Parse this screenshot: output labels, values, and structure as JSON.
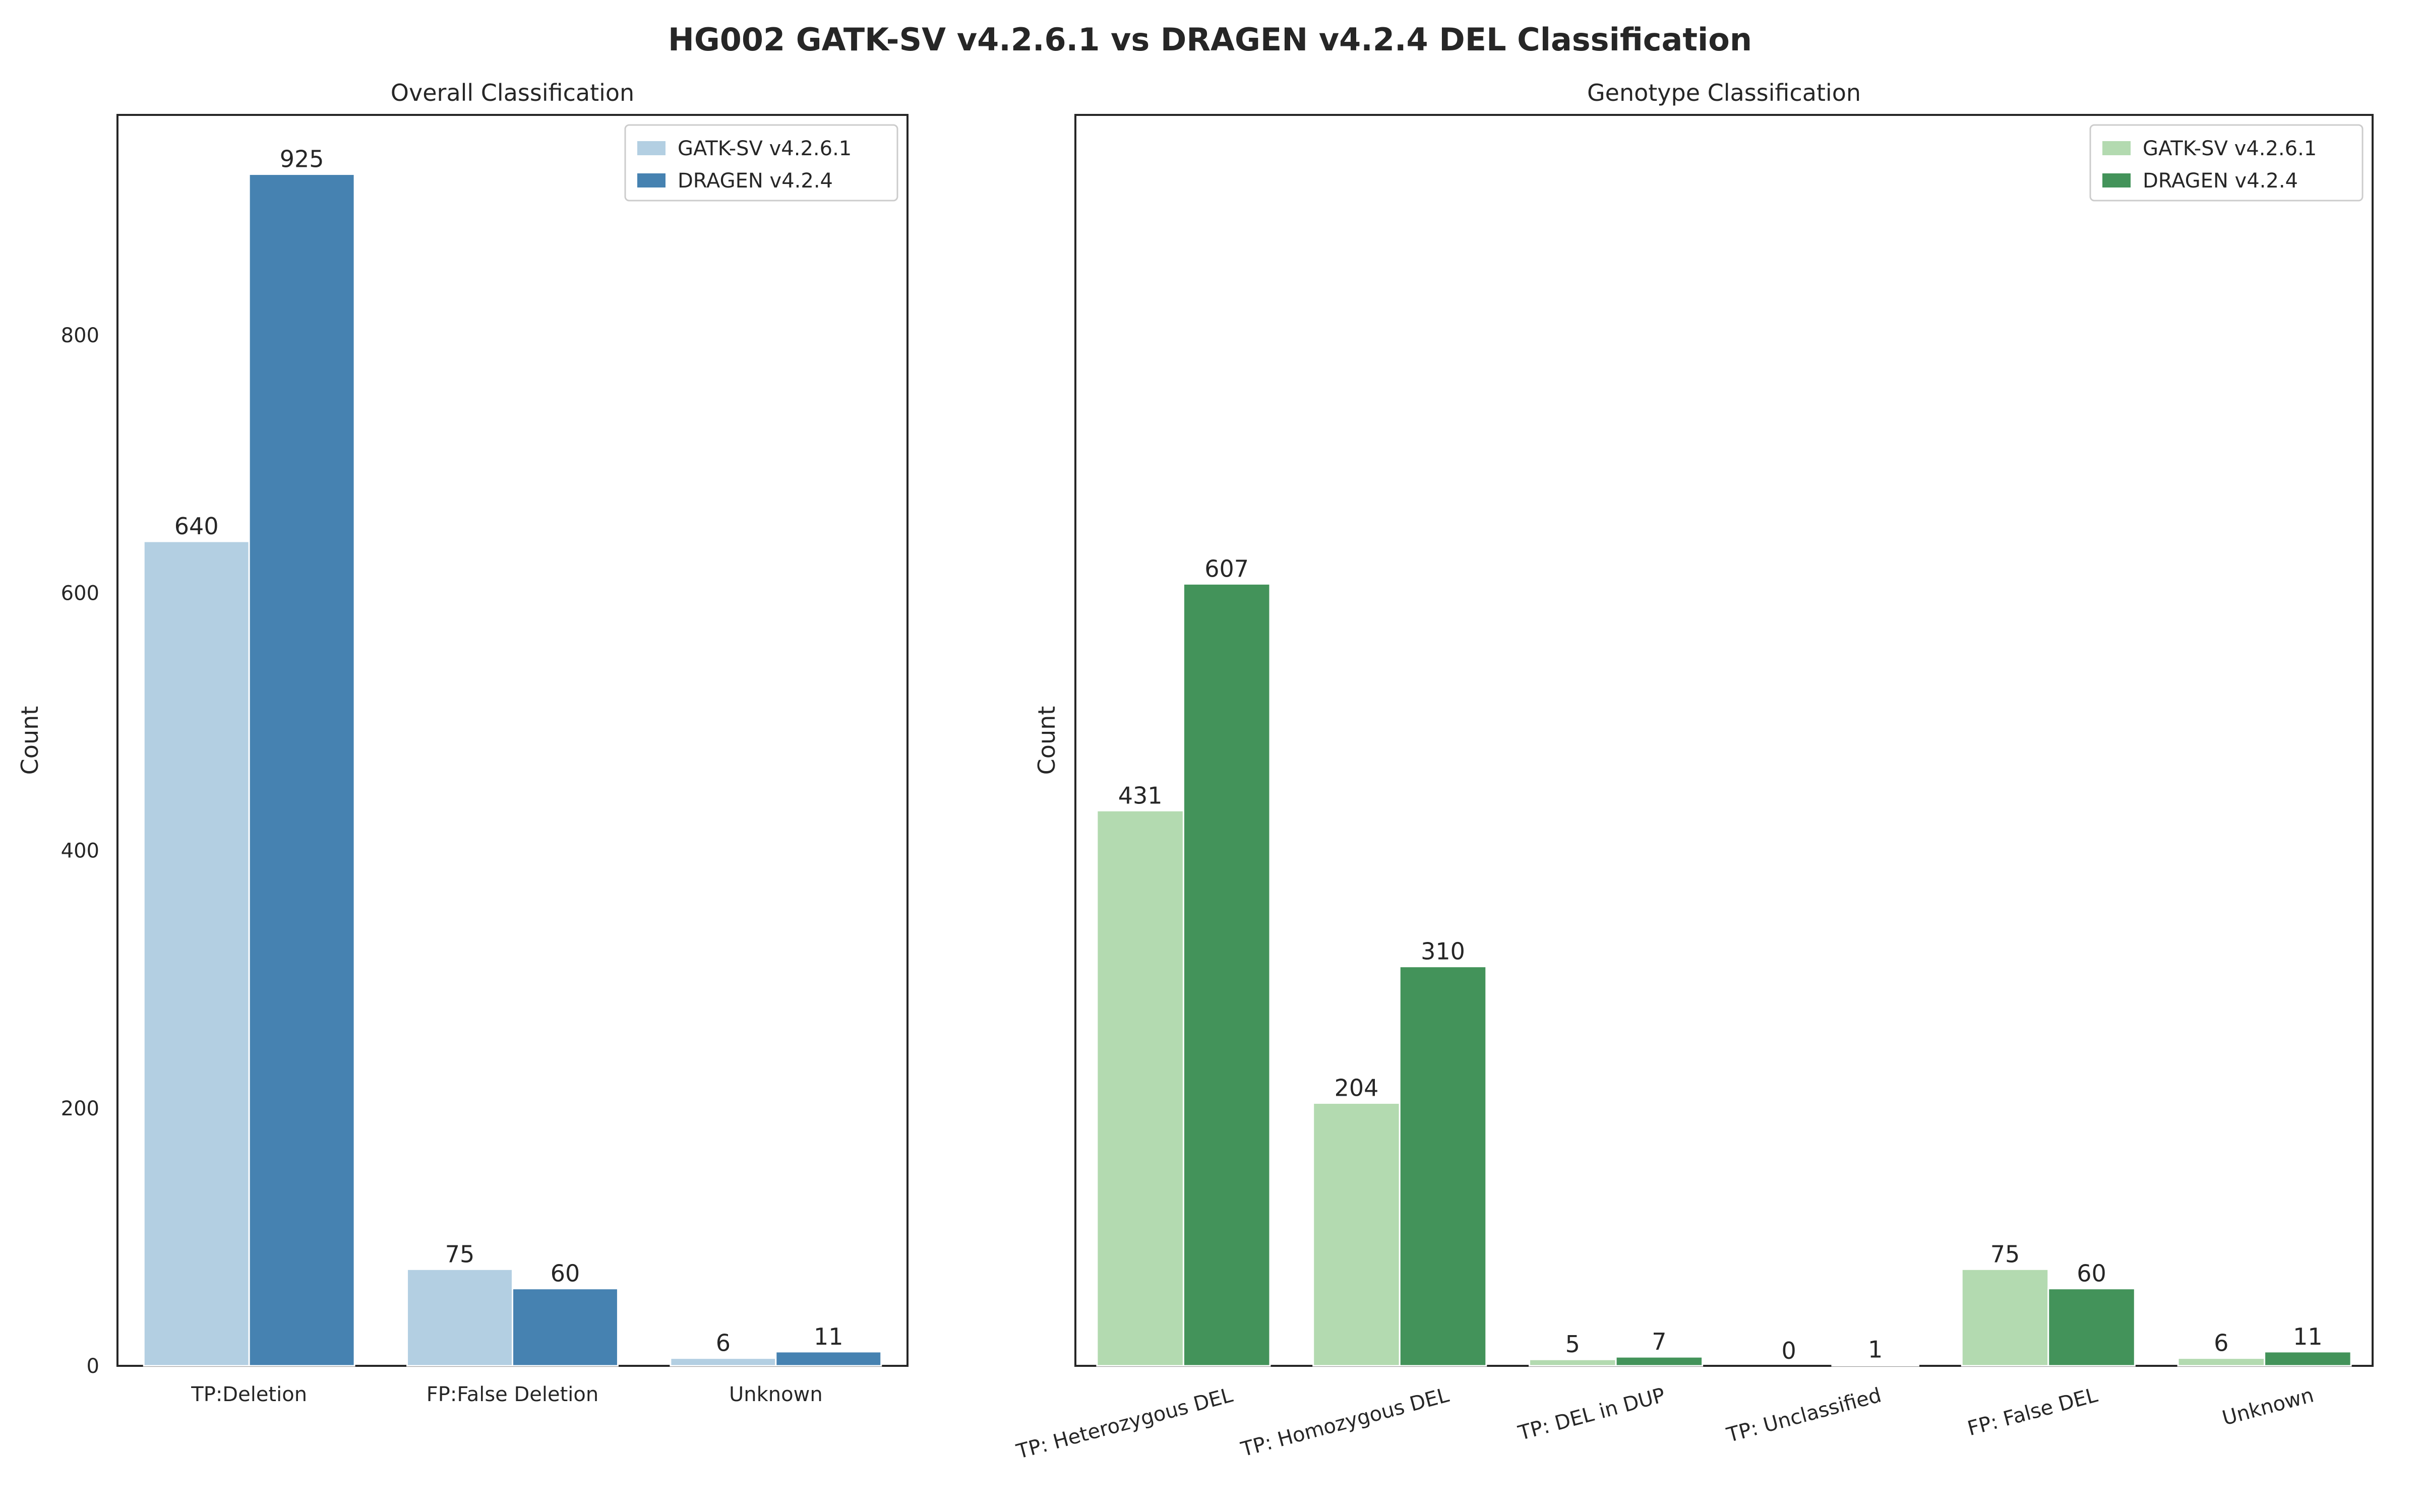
{
  "title": "HG002 GATK-SV v4.2.6.1 vs DRAGEN v4.2.4 DEL Classification",
  "chart_data": [
    {
      "type": "bar",
      "title": "Overall Classification",
      "xlabel": "",
      "ylabel": "Count",
      "categories": [
        "TP:Deletion",
        "FP:False Deletion",
        "Unknown"
      ],
      "series": [
        {
          "name": "GATK-SV v4.2.6.1",
          "color": "#b3cfe2",
          "values": [
            640,
            75,
            6
          ]
        },
        {
          "name": "DRAGEN v4.2.4",
          "color": "#4682b1",
          "values": [
            925,
            60,
            11
          ]
        }
      ],
      "ylim": [
        0,
        971
      ],
      "yticks": [
        "0",
        "200",
        "400",
        "600",
        "800"
      ],
      "yticks_values": [
        0,
        200,
        400,
        600,
        800
      ],
      "legend": "top-right",
      "grid": false
    },
    {
      "type": "bar",
      "title": "Genotype Classification",
      "xlabel": "",
      "ylabel": "Count",
      "categories": [
        "TP: Heterozygous DEL",
        "TP: Homozygous DEL",
        "TP: DEL in DUP",
        "TP: Unclassified",
        "FP: False DEL",
        "Unknown"
      ],
      "series": [
        {
          "name": "GATK-SV v4.2.6.1",
          "color": "#b3dab0",
          "values": [
            431,
            204,
            5,
            0,
            75,
            6
          ]
        },
        {
          "name": "DRAGEN v4.2.4",
          "color": "#43935a",
          "values": [
            607,
            310,
            7,
            1,
            60,
            11
          ]
        }
      ],
      "ylim": [
        0,
        971
      ],
      "yticks": [],
      "yticks_values": [],
      "legend": "top-right",
      "grid": false
    }
  ]
}
